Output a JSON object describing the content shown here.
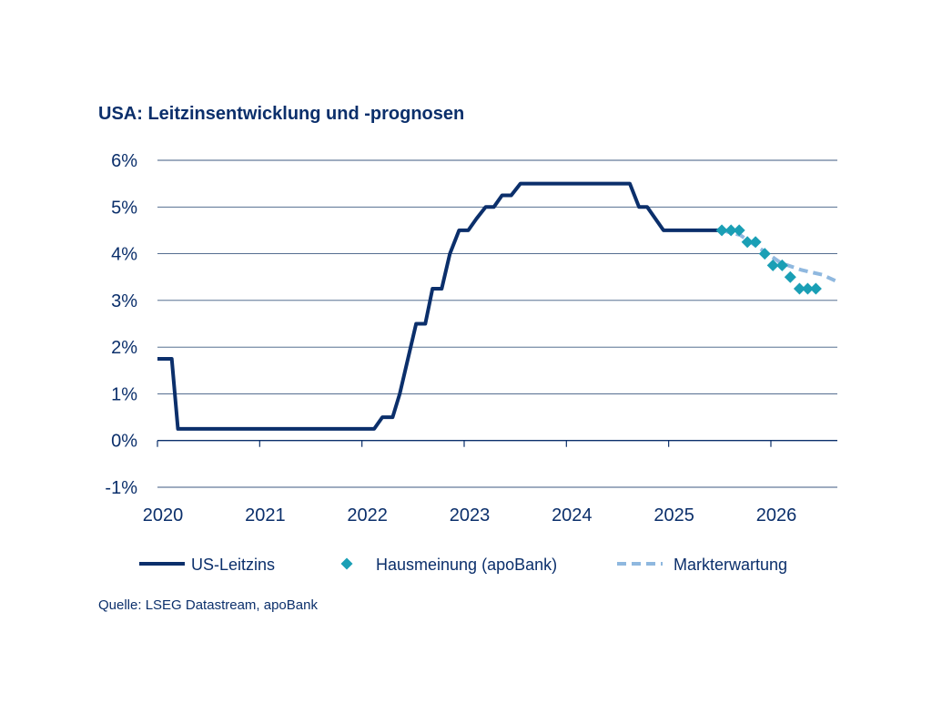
{
  "chart_data": {
    "type": "line",
    "title": "USA: Leitzinsentwicklung und -prognosen",
    "source": "Quelle: LSEG Datastream, apoBank",
    "xlim": [
      2020.0,
      2026.65
    ],
    "ylim": [
      -1,
      6
    ],
    "y_ticks": [
      {
        "value": 6,
        "label": "6%"
      },
      {
        "value": 5,
        "label": "5%"
      },
      {
        "value": 4,
        "label": "4%"
      },
      {
        "value": 3,
        "label": "3%"
      },
      {
        "value": 2,
        "label": "2%"
      },
      {
        "value": 1,
        "label": "1%"
      },
      {
        "value": 0,
        "label": "0%"
      },
      {
        "value": -1,
        "label": "-1%"
      }
    ],
    "x_ticks": [
      {
        "value": 2020,
        "label": "2020"
      },
      {
        "value": 2021,
        "label": "2021"
      },
      {
        "value": 2022,
        "label": "2022"
      },
      {
        "value": 2023,
        "label": "2023"
      },
      {
        "value": 2024,
        "label": "2024"
      },
      {
        "value": 2025,
        "label": "2025"
      },
      {
        "value": 2026,
        "label": "2026"
      }
    ],
    "grid": "horizontal",
    "legend_position": "bottom",
    "series": [
      {
        "name": "US-Leitzins",
        "kind": "line",
        "color": "#0b2f6b",
        "points": [
          [
            2020.0,
            1.75
          ],
          [
            2020.14,
            1.75
          ],
          [
            2020.2,
            0.25
          ],
          [
            2022.12,
            0.25
          ],
          [
            2022.2,
            0.5
          ],
          [
            2022.3,
            0.5
          ],
          [
            2022.37,
            1.0
          ],
          [
            2022.45,
            1.75
          ],
          [
            2022.53,
            2.5
          ],
          [
            2022.62,
            2.5
          ],
          [
            2022.69,
            3.25
          ],
          [
            2022.78,
            3.25
          ],
          [
            2022.86,
            4.0
          ],
          [
            2022.95,
            4.5
          ],
          [
            2023.04,
            4.5
          ],
          [
            2023.12,
            4.75
          ],
          [
            2023.21,
            5.0
          ],
          [
            2023.29,
            5.0
          ],
          [
            2023.37,
            5.25
          ],
          [
            2023.46,
            5.25
          ],
          [
            2023.55,
            5.5
          ],
          [
            2024.62,
            5.5
          ],
          [
            2024.71,
            5.0
          ],
          [
            2024.79,
            5.0
          ],
          [
            2024.95,
            4.5
          ],
          [
            2025.52,
            4.5
          ]
        ]
      },
      {
        "name": "Hausmeinung (apoBank)",
        "kind": "markers",
        "color": "#1a9fb5",
        "points": [
          [
            2025.52,
            4.5
          ],
          [
            2025.61,
            4.5
          ],
          [
            2025.69,
            4.5
          ],
          [
            2025.77,
            4.25
          ],
          [
            2025.85,
            4.25
          ],
          [
            2025.94,
            4.0
          ],
          [
            2026.02,
            3.75
          ],
          [
            2026.11,
            3.75
          ],
          [
            2026.19,
            3.5
          ],
          [
            2026.28,
            3.25
          ],
          [
            2026.36,
            3.25
          ],
          [
            2026.44,
            3.25
          ]
        ]
      },
      {
        "name": "Markterwartung",
        "kind": "dashed",
        "color": "#8fb8df",
        "points": [
          [
            2025.52,
            4.5
          ],
          [
            2025.7,
            4.4
          ],
          [
            2025.9,
            4.1
          ],
          [
            2026.1,
            3.8
          ],
          [
            2026.3,
            3.65
          ],
          [
            2026.5,
            3.55
          ],
          [
            2026.65,
            3.4
          ]
        ]
      }
    ]
  }
}
